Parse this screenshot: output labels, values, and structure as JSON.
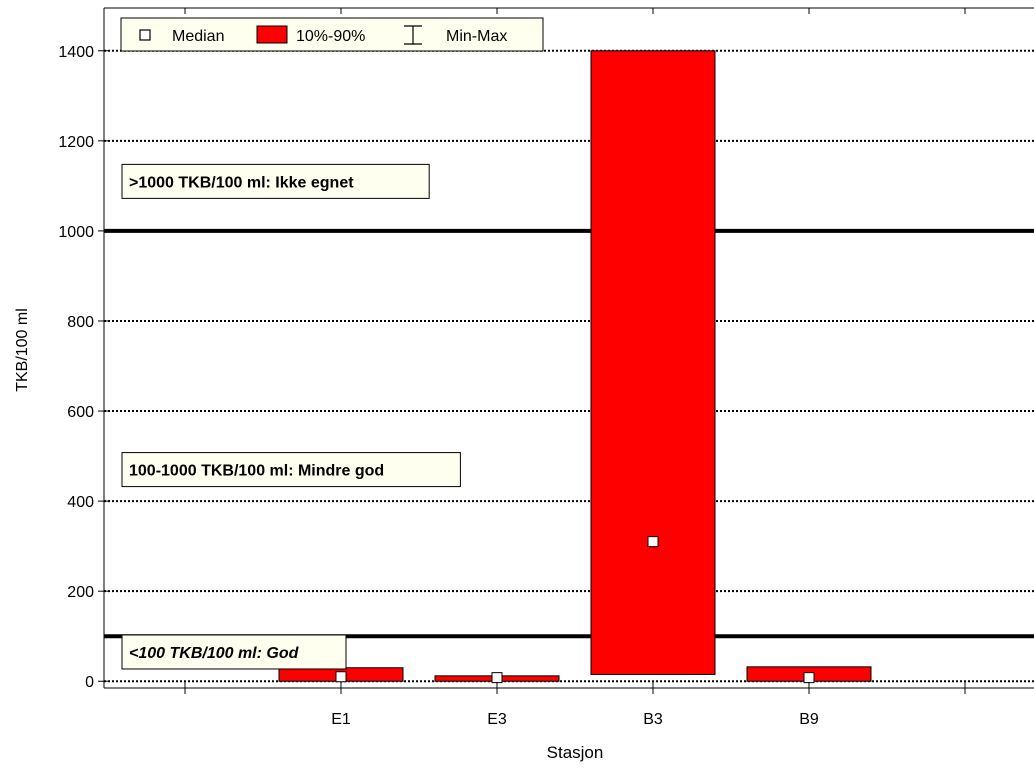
{
  "chart_data": {
    "type": "box",
    "categories": [
      "E1",
      "E3",
      "B3",
      "B9"
    ],
    "series": [
      {
        "name": "Median",
        "values": [
          10,
          8,
          310,
          8
        ]
      },
      {
        "name": "10%-90%",
        "low": [
          0,
          0,
          15,
          0
        ],
        "high": [
          30,
          12,
          1400,
          32
        ]
      }
    ],
    "min_max_label": "Min-Max",
    "xlabel": "Stasjon",
    "ylabel": "TKB/100 ml",
    "ylim": [
      -15,
      1495
    ],
    "yticks": [
      0,
      200,
      400,
      600,
      800,
      1000,
      1200,
      1400
    ],
    "grid_y": true,
    "grid_style": "dotted",
    "legend_position": "top-left",
    "threshold_lines": [
      100,
      1000
    ],
    "annotations": [
      {
        "text": ">1000 TKB/100 ml: Ikke egnet",
        "y": 1110,
        "italic": false
      },
      {
        "text": "100-1000 TKB/100 ml: Mindre god",
        "y": 470,
        "italic": false
      },
      {
        "text": "<100 TKB/100 ml: God",
        "y": 65,
        "italic": true
      }
    ],
    "colors": {
      "box": "#ff0000",
      "threshold": "#000000",
      "label_bg": "#fffff0"
    }
  }
}
